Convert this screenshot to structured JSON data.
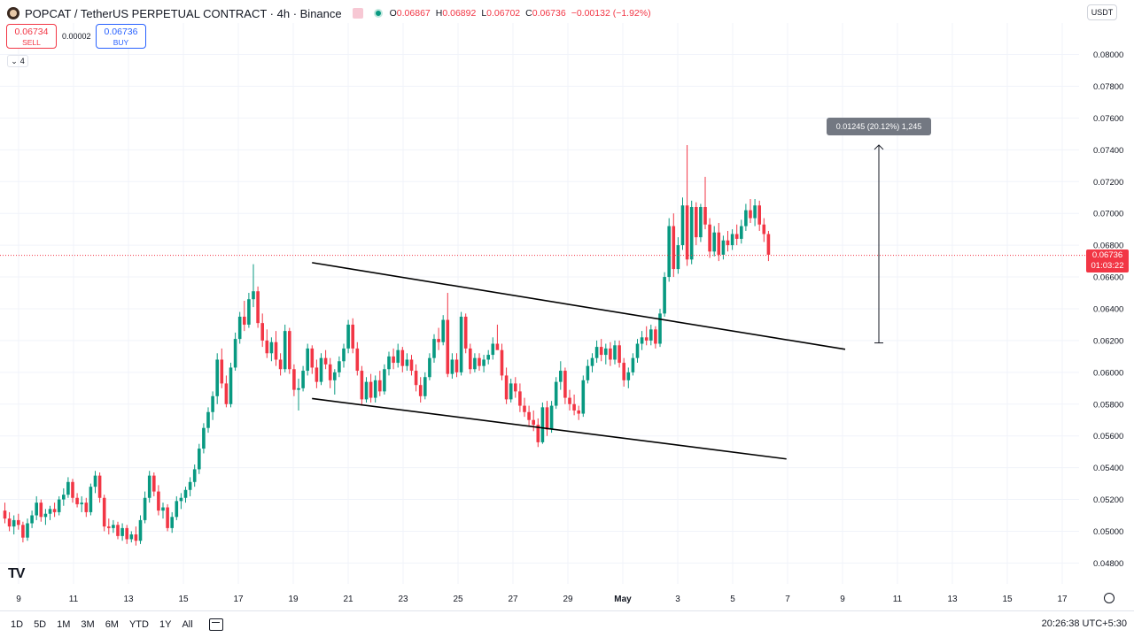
{
  "header": {
    "symbol_title": "POPCAT / TetherUS PERPETUAL CONTRACT · 4h · Binance",
    "ohlc": {
      "o_label": "O",
      "o": "0.06867",
      "h_label": "H",
      "h": "0.06892",
      "l_label": "L",
      "l": "0.06702",
      "c_label": "C",
      "c": "0.06736",
      "change": "−0.00132 (−1.92%)"
    }
  },
  "trade": {
    "sell_price": "0.06734",
    "sell_label": "SELL",
    "spread": "0.00002",
    "buy_price": "0.06736",
    "buy_label": "BUY"
  },
  "indicators_count": "4",
  "currency": "USDT",
  "price_axis_labels": [
    "0.08000",
    "0.07800",
    "0.07600",
    "0.07400",
    "0.07200",
    "0.07000",
    "0.06800",
    "0.06600",
    "0.06400",
    "0.06200",
    "0.06000",
    "0.05800",
    "0.05600",
    "0.05400",
    "0.05200",
    "0.05000",
    "0.04800"
  ],
  "time_axis_labels": [
    "9",
    "11",
    "13",
    "15",
    "17",
    "19",
    "21",
    "23",
    "25",
    "27",
    "29",
    "May",
    "3",
    "5",
    "7",
    "9",
    "11",
    "13",
    "15",
    "17"
  ],
  "last_price": {
    "price": "0.06736",
    "countdown": "01:03:22"
  },
  "measure": {
    "label": "0.01245 (20.12%) 1,245"
  },
  "bottom_bar": {
    "ranges": [
      "1D",
      "5D",
      "1M",
      "3M",
      "6M",
      "YTD",
      "1Y",
      "All"
    ],
    "clock": "20:26:38 UTC+5:30"
  },
  "colors": {
    "up": "#089981",
    "down": "#f23645",
    "grid": "#f0f3fa"
  },
  "chart_data": {
    "type": "candlestick",
    "y_range": [
      0.047,
      0.0816
    ],
    "y_ticks": [
      0.048,
      0.05,
      0.052,
      0.054,
      0.056,
      0.058,
      0.06,
      0.062,
      0.064,
      0.066,
      0.068,
      0.07,
      0.072,
      0.074,
      0.076,
      0.078,
      0.08
    ],
    "ohlc": [
      [
        0.0513,
        0.0518,
        0.0505,
        0.0508
      ],
      [
        0.0508,
        0.0512,
        0.05,
        0.0503
      ],
      [
        0.0503,
        0.051,
        0.0498,
        0.0507
      ],
      [
        0.0507,
        0.0511,
        0.0501,
        0.0504
      ],
      [
        0.0504,
        0.0506,
        0.0493,
        0.0496
      ],
      [
        0.0496,
        0.0508,
        0.0494,
        0.0505
      ],
      [
        0.0505,
        0.0513,
        0.0502,
        0.051
      ],
      [
        0.051,
        0.0522,
        0.0507,
        0.0518
      ],
      [
        0.0518,
        0.052,
        0.0506,
        0.0509
      ],
      [
        0.0509,
        0.0514,
        0.0504,
        0.0511
      ],
      [
        0.0511,
        0.0516,
        0.0507,
        0.0514
      ],
      [
        0.0514,
        0.0518,
        0.0509,
        0.0512
      ],
      [
        0.0512,
        0.0522,
        0.051,
        0.052
      ],
      [
        0.052,
        0.0527,
        0.0516,
        0.0523
      ],
      [
        0.0523,
        0.0534,
        0.0521,
        0.0531
      ],
      [
        0.0531,
        0.0533,
        0.0518,
        0.0521
      ],
      [
        0.0521,
        0.0524,
        0.0515,
        0.0517
      ],
      [
        0.0517,
        0.0522,
        0.0512,
        0.0518
      ],
      [
        0.0518,
        0.0521,
        0.0509,
        0.0512
      ],
      [
        0.0512,
        0.053,
        0.051,
        0.0528
      ],
      [
        0.0528,
        0.0538,
        0.0524,
        0.0535
      ],
      [
        0.0535,
        0.0537,
        0.0518,
        0.0521
      ],
      [
        0.0521,
        0.0523,
        0.05,
        0.0503
      ],
      [
        0.0503,
        0.0508,
        0.0498,
        0.0502
      ],
      [
        0.0502,
        0.0507,
        0.0499,
        0.0504
      ],
      [
        0.0504,
        0.0506,
        0.0495,
        0.0497
      ],
      [
        0.0497,
        0.0505,
        0.0494,
        0.0502
      ],
      [
        0.0502,
        0.0504,
        0.0492,
        0.0495
      ],
      [
        0.0495,
        0.05,
        0.0493,
        0.0498
      ],
      [
        0.0498,
        0.0503,
        0.0491,
        0.0494
      ],
      [
        0.0494,
        0.051,
        0.0492,
        0.0507
      ],
      [
        0.0507,
        0.0525,
        0.0505,
        0.0521
      ],
      [
        0.0521,
        0.0538,
        0.0518,
        0.0535
      ],
      [
        0.0535,
        0.0537,
        0.0522,
        0.0525
      ],
      [
        0.0525,
        0.0529,
        0.051,
        0.0513
      ],
      [
        0.0513,
        0.0518,
        0.0508,
        0.0515
      ],
      [
        0.0515,
        0.0517,
        0.05,
        0.0502
      ],
      [
        0.0502,
        0.0512,
        0.0499,
        0.0509
      ],
      [
        0.0509,
        0.0522,
        0.0507,
        0.0519
      ],
      [
        0.0519,
        0.0524,
        0.0514,
        0.0521
      ],
      [
        0.0521,
        0.0528,
        0.0518,
        0.0526
      ],
      [
        0.0526,
        0.0534,
        0.0522,
        0.0531
      ],
      [
        0.0531,
        0.0542,
        0.0528,
        0.0539
      ],
      [
        0.0539,
        0.0555,
        0.0536,
        0.0552
      ],
      [
        0.0552,
        0.0568,
        0.0549,
        0.0565
      ],
      [
        0.0565,
        0.0578,
        0.0562,
        0.0575
      ],
      [
        0.0575,
        0.0588,
        0.057,
        0.0585
      ],
      [
        0.0585,
        0.0612,
        0.058,
        0.0608
      ],
      [
        0.0608,
        0.0615,
        0.059,
        0.0593
      ],
      [
        0.0593,
        0.0598,
        0.0578,
        0.058
      ],
      [
        0.058,
        0.0606,
        0.0578,
        0.0603
      ],
      [
        0.0603,
        0.0625,
        0.0601,
        0.0621
      ],
      [
        0.0621,
        0.0638,
        0.0618,
        0.0635
      ],
      [
        0.0635,
        0.0645,
        0.0626,
        0.063
      ],
      [
        0.063,
        0.065,
        0.0628,
        0.0646
      ],
      [
        0.0646,
        0.0668,
        0.0641,
        0.0651
      ],
      [
        0.0651,
        0.0654,
        0.0628,
        0.0631
      ],
      [
        0.0631,
        0.0637,
        0.0616,
        0.062
      ],
      [
        0.062,
        0.0627,
        0.0609,
        0.0612
      ],
      [
        0.0612,
        0.0622,
        0.0607,
        0.0619
      ],
      [
        0.0619,
        0.0626,
        0.0604,
        0.0608
      ],
      [
        0.0608,
        0.0612,
        0.0598,
        0.0602
      ],
      [
        0.0602,
        0.063,
        0.06,
        0.0626
      ],
      [
        0.0626,
        0.0628,
        0.0599,
        0.0602
      ],
      [
        0.0602,
        0.0605,
        0.0585,
        0.0589
      ],
      [
        0.0589,
        0.0596,
        0.0576,
        0.059
      ],
      [
        0.059,
        0.0604,
        0.0588,
        0.0601
      ],
      [
        0.0601,
        0.0618,
        0.0598,
        0.0615
      ],
      [
        0.0615,
        0.0617,
        0.0599,
        0.0603
      ],
      [
        0.0603,
        0.0608,
        0.059,
        0.0594
      ],
      [
        0.0594,
        0.0612,
        0.0592,
        0.0609
      ],
      [
        0.0609,
        0.0614,
        0.0602,
        0.0605
      ],
      [
        0.0605,
        0.0609,
        0.059,
        0.0595
      ],
      [
        0.0595,
        0.0602,
        0.0586,
        0.06
      ],
      [
        0.06,
        0.061,
        0.0597,
        0.0607
      ],
      [
        0.0607,
        0.0618,
        0.0603,
        0.0615
      ],
      [
        0.0615,
        0.0633,
        0.0612,
        0.063
      ],
      [
        0.063,
        0.0634,
        0.0612,
        0.0615
      ],
      [
        0.0615,
        0.0619,
        0.0598,
        0.0601
      ],
      [
        0.0601,
        0.0604,
        0.0579,
        0.0583
      ],
      [
        0.0583,
        0.0597,
        0.0581,
        0.0594
      ],
      [
        0.0594,
        0.0599,
        0.0581,
        0.0584
      ],
      [
        0.0584,
        0.0598,
        0.0581,
        0.0595
      ],
      [
        0.0595,
        0.0601,
        0.0585,
        0.0588
      ],
      [
        0.0588,
        0.0605,
        0.0586,
        0.0602
      ],
      [
        0.0602,
        0.0613,
        0.0598,
        0.061
      ],
      [
        0.061,
        0.0615,
        0.0602,
        0.0606
      ],
      [
        0.0606,
        0.0618,
        0.0603,
        0.0614
      ],
      [
        0.0614,
        0.0616,
        0.06,
        0.0604
      ],
      [
        0.0604,
        0.0612,
        0.0601,
        0.0608
      ],
      [
        0.0608,
        0.0611,
        0.0598,
        0.0601
      ],
      [
        0.0601,
        0.0605,
        0.0588,
        0.0592
      ],
      [
        0.0592,
        0.0597,
        0.0581,
        0.0585
      ],
      [
        0.0585,
        0.06,
        0.0583,
        0.0597
      ],
      [
        0.0597,
        0.0612,
        0.0595,
        0.0609
      ],
      [
        0.0609,
        0.0624,
        0.0606,
        0.0621
      ],
      [
        0.0621,
        0.0628,
        0.0614,
        0.0619
      ],
      [
        0.0619,
        0.0636,
        0.0617,
        0.0633
      ],
      [
        0.0633,
        0.065,
        0.0597,
        0.0599
      ],
      [
        0.0599,
        0.0612,
        0.0596,
        0.0608
      ],
      [
        0.0608,
        0.0612,
        0.0597,
        0.06
      ],
      [
        0.06,
        0.0638,
        0.0598,
        0.0635
      ],
      [
        0.0635,
        0.0637,
        0.0612,
        0.0615
      ],
      [
        0.0615,
        0.0618,
        0.0599,
        0.0602
      ],
      [
        0.0602,
        0.0612,
        0.06,
        0.0609
      ],
      [
        0.0609,
        0.0612,
        0.0601,
        0.0604
      ],
      [
        0.0604,
        0.0611,
        0.06,
        0.0608
      ],
      [
        0.0608,
        0.0614,
        0.0605,
        0.0611
      ],
      [
        0.0611,
        0.0622,
        0.0608,
        0.0618
      ],
      [
        0.0618,
        0.063,
        0.0616,
        0.0614
      ],
      [
        0.0614,
        0.0618,
        0.0595,
        0.0598
      ],
      [
        0.0598,
        0.0603,
        0.058,
        0.0583
      ],
      [
        0.0583,
        0.0596,
        0.0581,
        0.0593
      ],
      [
        0.0593,
        0.0597,
        0.0584,
        0.0588
      ],
      [
        0.0588,
        0.0593,
        0.0575,
        0.0579
      ],
      [
        0.0579,
        0.0584,
        0.0572,
        0.0575
      ],
      [
        0.0575,
        0.0579,
        0.0566,
        0.057
      ],
      [
        0.057,
        0.0576,
        0.0563,
        0.0567
      ],
      [
        0.0567,
        0.0571,
        0.0553,
        0.0556
      ],
      [
        0.0556,
        0.0581,
        0.0555,
        0.0578
      ],
      [
        0.0578,
        0.0582,
        0.056,
        0.0564
      ],
      [
        0.0564,
        0.0582,
        0.0562,
        0.0579
      ],
      [
        0.0579,
        0.0597,
        0.0577,
        0.0594
      ],
      [
        0.0594,
        0.0607,
        0.0589,
        0.0601
      ],
      [
        0.0601,
        0.0603,
        0.058,
        0.0584
      ],
      [
        0.0584,
        0.0589,
        0.0576,
        0.058
      ],
      [
        0.058,
        0.0586,
        0.0573,
        0.0576
      ],
      [
        0.0576,
        0.0579,
        0.057,
        0.0574
      ],
      [
        0.0574,
        0.0598,
        0.0572,
        0.0595
      ],
      [
        0.0595,
        0.0608,
        0.0593,
        0.0604
      ],
      [
        0.0604,
        0.0612,
        0.06,
        0.0609
      ],
      [
        0.0609,
        0.062,
        0.0606,
        0.0616
      ],
      [
        0.0616,
        0.0621,
        0.0607,
        0.0611
      ],
      [
        0.0611,
        0.0618,
        0.0605,
        0.0615
      ],
      [
        0.0615,
        0.0619,
        0.0604,
        0.0608
      ],
      [
        0.0608,
        0.062,
        0.0605,
        0.0617
      ],
      [
        0.0617,
        0.062,
        0.0603,
        0.0606
      ],
      [
        0.0606,
        0.0609,
        0.0591,
        0.0595
      ],
      [
        0.0595,
        0.0603,
        0.059,
        0.06
      ],
      [
        0.06,
        0.0612,
        0.0598,
        0.0609
      ],
      [
        0.0609,
        0.0621,
        0.0606,
        0.0618
      ],
      [
        0.0618,
        0.0626,
        0.0614,
        0.0622
      ],
      [
        0.0622,
        0.0629,
        0.0617,
        0.062
      ],
      [
        0.062,
        0.063,
        0.0617,
        0.0627
      ],
      [
        0.0627,
        0.0629,
        0.0615,
        0.0618
      ],
      [
        0.0618,
        0.064,
        0.0616,
        0.0637
      ],
      [
        0.0637,
        0.0663,
        0.0635,
        0.066
      ],
      [
        0.066,
        0.0697,
        0.0657,
        0.0692
      ],
      [
        0.0692,
        0.07,
        0.066,
        0.0665
      ],
      [
        0.0665,
        0.0685,
        0.0662,
        0.068
      ],
      [
        0.068,
        0.071,
        0.0677,
        0.0705
      ],
      [
        0.0705,
        0.0743,
        0.0667,
        0.0671
      ],
      [
        0.0671,
        0.0708,
        0.0668,
        0.0704
      ],
      [
        0.0704,
        0.0707,
        0.068,
        0.0685
      ],
      [
        0.0685,
        0.0706,
        0.0682,
        0.0704
      ],
      [
        0.0704,
        0.0723,
        0.069,
        0.0693
      ],
      [
        0.0693,
        0.0697,
        0.0672,
        0.0676
      ],
      [
        0.0676,
        0.0692,
        0.0673,
        0.0688
      ],
      [
        0.0688,
        0.0694,
        0.067,
        0.0674
      ],
      [
        0.0674,
        0.0686,
        0.0671,
        0.0683
      ],
      [
        0.0683,
        0.0689,
        0.0676,
        0.068
      ],
      [
        0.068,
        0.069,
        0.0677,
        0.0687
      ],
      [
        0.0687,
        0.0693,
        0.068,
        0.0684
      ],
      [
        0.0684,
        0.0696,
        0.0681,
        0.0692
      ],
      [
        0.0692,
        0.0706,
        0.0689,
        0.0702
      ],
      [
        0.0702,
        0.0709,
        0.0694,
        0.0697
      ],
      [
        0.0697,
        0.0709,
        0.0692,
        0.0705
      ],
      [
        0.0705,
        0.0708,
        0.0689,
        0.0693
      ],
      [
        0.0693,
        0.0697,
        0.0682,
        0.0687
      ],
      [
        0.0687,
        0.0689,
        0.067,
        0.0674
      ]
    ],
    "trendlines": [
      {
        "from": [
          67,
          0.0669
        ],
        "to": [
          185,
          0.06145
        ]
      },
      {
        "from": [
          67,
          0.05835
        ],
        "to": [
          172,
          0.05455
        ]
      }
    ],
    "measure": {
      "bar": 198,
      "from": 0.06185,
      "to": 0.0743
    },
    "last_price": 0.06736
  }
}
